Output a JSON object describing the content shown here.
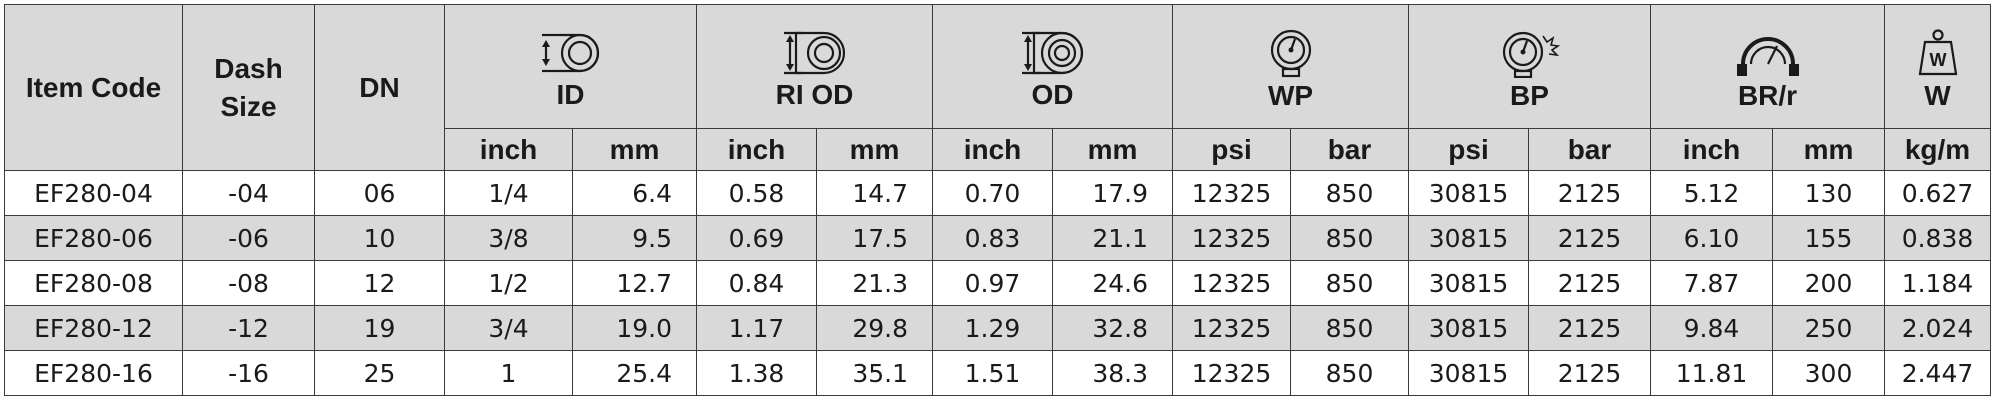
{
  "headers": {
    "item_code": "Item Code",
    "dash_size": "Dash Size",
    "dn": "DN",
    "groups": [
      {
        "label": "ID",
        "icon": "hose-id-icon"
      },
      {
        "label": "RI OD",
        "icon": "hose-ri-od-icon"
      },
      {
        "label": "OD",
        "icon": "hose-od-icon"
      },
      {
        "label": "WP",
        "icon": "pressure-gauge-icon"
      },
      {
        "label": "BP",
        "icon": "burst-gauge-icon"
      },
      {
        "label": "BR/r",
        "icon": "bend-radius-icon"
      },
      {
        "label": "W",
        "icon": "weight-icon"
      }
    ],
    "units": [
      "inch",
      "mm",
      "inch",
      "mm",
      "inch",
      "mm",
      "psi",
      "bar",
      "psi",
      "bar",
      "inch",
      "mm",
      "kg/m"
    ]
  },
  "rows": [
    [
      "EF280-04",
      "-04",
      "06",
      "1/4",
      "6.4",
      "0.58",
      "14.7",
      "0.70",
      "17.9",
      "12325",
      "850",
      "30815",
      "2125",
      "5.12",
      "130",
      "0.627"
    ],
    [
      "EF280-06",
      "-06",
      "10",
      "3/8",
      "9.5",
      "0.69",
      "17.5",
      "0.83",
      "21.1",
      "12325",
      "850",
      "30815",
      "2125",
      "6.10",
      "155",
      "0.838"
    ],
    [
      "EF280-08",
      "-08",
      "12",
      "1/2",
      "12.7",
      "0.84",
      "21.3",
      "0.97",
      "24.6",
      "12325",
      "850",
      "30815",
      "2125",
      "7.87",
      "200",
      "1.184"
    ],
    [
      "EF280-12",
      "-12",
      "19",
      "3/4",
      "19.0",
      "1.17",
      "29.8",
      "1.29",
      "32.8",
      "12325",
      "850",
      "30815",
      "2125",
      "9.84",
      "250",
      "2.024"
    ],
    [
      "EF280-16",
      "-16",
      "25",
      "1",
      "25.4",
      "1.38",
      "35.1",
      "1.51",
      "38.3",
      "12325",
      "850",
      "30815",
      "2125",
      "11.81",
      "300",
      "2.447"
    ]
  ]
}
